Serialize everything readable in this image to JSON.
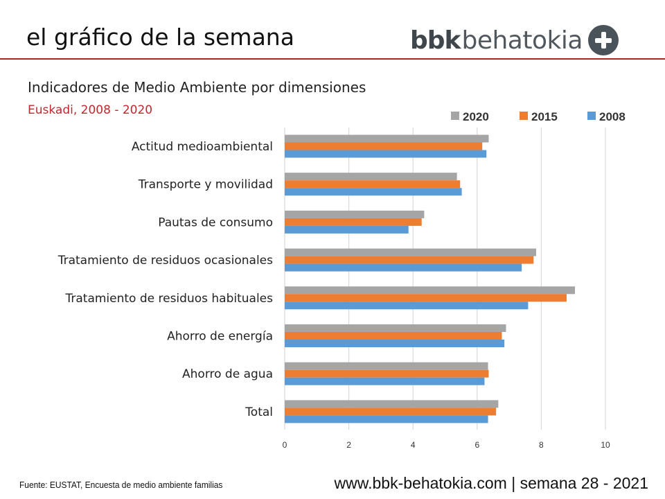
{
  "header": {
    "title": "el gráfico de la semana",
    "logo_bold": "bbk",
    "logo_light": "behatokia",
    "logo_icon": "plus-circle-icon"
  },
  "colors": {
    "accent_red": "#b22222",
    "series_2020": "#a5a5a5",
    "series_2015": "#ed7d31",
    "series_2008": "#5b9bd5"
  },
  "chart_data": {
    "type": "bar",
    "orientation": "horizontal",
    "title": "Indicadores de Medio Ambiente por dimensiones",
    "subtitle": "Euskadi, 2008 - 2020",
    "xlabel": "",
    "ylabel": "",
    "xlim": [
      0,
      10
    ],
    "xticks": [
      "0",
      "2",
      "4",
      "6",
      "8",
      "10"
    ],
    "grid": true,
    "legend_position": "top-right",
    "categories": [
      "Actitud medioambiental",
      "Transporte y movilidad",
      "Pautas de consumo",
      "Tratamiento de residuos ocasionales",
      "Tratamiento de residuos habituales",
      "Ahorro de energía",
      "Ahorro de agua",
      "Total"
    ],
    "series": [
      {
        "name": "2020",
        "color": "#a5a5a5",
        "values": [
          6.36,
          5.37,
          4.35,
          7.84,
          9.05,
          6.9,
          6.34,
          6.66
        ]
      },
      {
        "name": "2015",
        "color": "#ed7d31",
        "values": [
          6.16,
          5.47,
          4.27,
          7.76,
          8.79,
          6.77,
          6.36,
          6.59
        ]
      },
      {
        "name": "2008",
        "color": "#5b9bd5",
        "values": [
          6.29,
          5.52,
          3.86,
          7.39,
          7.59,
          6.85,
          6.23,
          6.34
        ]
      }
    ]
  },
  "footer": {
    "source": "Fuente:  EUSTAT, Encuesta de medio ambiente familias",
    "site": "www.bbk-behatokia.com | semana 28 - 2021"
  }
}
